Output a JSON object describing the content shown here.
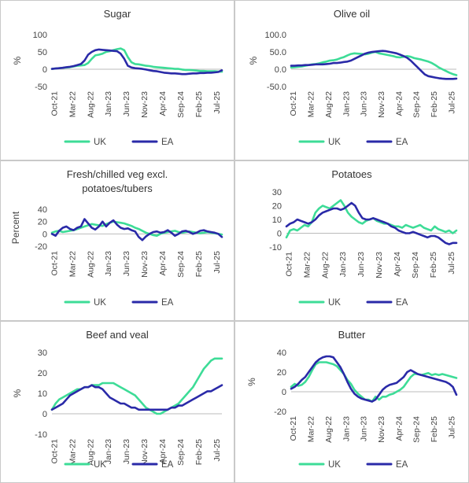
{
  "chart_data": [
    {
      "type": "line",
      "title": [
        "Sugar"
      ],
      "ylabel": "%",
      "yticks": [
        "100",
        "50",
        "0",
        "-50"
      ],
      "ylim": [
        -50,
        100
      ],
      "xticks": [
        "Oct-21",
        "Mar-22",
        "Aug-22",
        "Jan-23",
        "Jun-23",
        "Nov-23",
        "Apr-24",
        "Sep-24",
        "Feb-25",
        "Jul-25"
      ],
      "series": [
        {
          "name": "UK",
          "color": "#3ddc97",
          "values": [
            1,
            2,
            3,
            4,
            5,
            6,
            8,
            10,
            11,
            12,
            18,
            30,
            40,
            42,
            45,
            50,
            52,
            55,
            58,
            60,
            55,
            35,
            20,
            15,
            14,
            12,
            10,
            9,
            7,
            6,
            5,
            4,
            3,
            2,
            1,
            1,
            -1,
            -2,
            -2,
            -3,
            -4,
            -5,
            -5,
            -6,
            -6,
            -6,
            -7,
            -7
          ]
        },
        {
          "name": "EA",
          "color": "#2a2aa8",
          "values": [
            1,
            2,
            3,
            4,
            6,
            7,
            9,
            12,
            15,
            25,
            42,
            50,
            55,
            57,
            56,
            55,
            54,
            53,
            52,
            45,
            30,
            10,
            5,
            3,
            2,
            1,
            -1,
            -3,
            -5,
            -6,
            -8,
            -10,
            -11,
            -12,
            -12,
            -13,
            -14,
            -14,
            -13,
            -12,
            -12,
            -11,
            -11,
            -10,
            -10,
            -9,
            -8,
            -3
          ]
        }
      ]
    },
    {
      "type": "line",
      "title": [
        "Olive oil"
      ],
      "ylabel": "%",
      "yticks": [
        "100.0",
        "50.0",
        "0.0",
        "-50.0"
      ],
      "ylim": [
        -50,
        100
      ],
      "xticks": [
        "Oct-21",
        "Mar-22",
        "Aug-22",
        "Jan-23",
        "Jun-23",
        "Nov-23",
        "Apr-24",
        "Sep-24",
        "Feb-25",
        "Jul-25"
      ],
      "series": [
        {
          "name": "UK",
          "color": "#3ddc97",
          "values": [
            5,
            6,
            7,
            8,
            10,
            12,
            14,
            15,
            17,
            20,
            22,
            25,
            26,
            28,
            32,
            35,
            40,
            44,
            46,
            45,
            44,
            43,
            45,
            48,
            50,
            46,
            44,
            42,
            40,
            38,
            35,
            34,
            36,
            38,
            36,
            32,
            30,
            28,
            25,
            22,
            18,
            12,
            5,
            0,
            -5,
            -10,
            -14,
            -17
          ]
        },
        {
          "name": "EA",
          "color": "#2a2aa8",
          "values": [
            10,
            10,
            11,
            11,
            12,
            12,
            13,
            14,
            14,
            14,
            15,
            16,
            18,
            18,
            19,
            21,
            22,
            25,
            30,
            35,
            40,
            45,
            48,
            50,
            51,
            52,
            53,
            52,
            50,
            48,
            46,
            42,
            38,
            33,
            25,
            15,
            5,
            -5,
            -15,
            -20,
            -22,
            -24,
            -26,
            -27,
            -28,
            -28,
            -28,
            -27
          ]
        }
      ]
    },
    {
      "type": "line",
      "title": [
        "Fresh/chilled veg excl.",
        "potatoes/tubers"
      ],
      "ylabel": "Percent",
      "yticks": [
        "40",
        "20",
        "0",
        "-20"
      ],
      "ylim": [
        -20,
        40
      ],
      "xticks": [
        "Oct-21",
        "Mar-22",
        "Aug-22",
        "Jan-23",
        "Jun-23",
        "Nov-23",
        "Apr-24",
        "Sep-24",
        "Feb-25",
        "Jul-25"
      ],
      "series": [
        {
          "name": "UK",
          "color": "#3ddc97",
          "values": [
            2,
            4,
            5,
            3,
            4,
            5,
            6,
            8,
            10,
            12,
            14,
            16,
            15,
            14,
            13,
            16,
            18,
            20,
            19,
            18,
            17,
            15,
            13,
            10,
            8,
            5,
            2,
            0,
            -2,
            -3,
            0,
            2,
            3,
            4,
            5,
            3,
            2,
            3,
            4,
            3,
            2,
            1,
            2,
            3,
            2,
            1,
            0,
            -1
          ]
        },
        {
          "name": "EA",
          "color": "#2a2aa8",
          "values": [
            0,
            -3,
            5,
            10,
            12,
            8,
            6,
            10,
            12,
            24,
            17,
            10,
            7,
            12,
            20,
            12,
            18,
            22,
            15,
            10,
            8,
            9,
            6,
            4,
            -5,
            -10,
            -4,
            0,
            3,
            4,
            2,
            3,
            6,
            2,
            -3,
            0,
            4,
            5,
            3,
            0,
            2,
            5,
            6,
            4,
            3,
            2,
            0,
            -5
          ]
        }
      ]
    },
    {
      "type": "line",
      "title": [
        "Potatoes"
      ],
      "ylabel": "",
      "yticks": [
        "30",
        "20",
        "10",
        "0",
        "-10"
      ],
      "ylim": [
        -10,
        30
      ],
      "xticks": [
        "Oct-21",
        "Mar-22",
        "Aug-22",
        "Jan-23",
        "Jun-23",
        "Nov-23",
        "Apr-24",
        "Sep-24",
        "Feb-25",
        "Jul-25"
      ],
      "series": [
        {
          "name": "UK",
          "color": "#3ddc97",
          "values": [
            -3,
            2,
            3,
            2,
            4,
            6,
            5,
            8,
            15,
            18,
            20,
            19,
            18,
            20,
            22,
            24,
            20,
            15,
            12,
            10,
            8,
            7,
            9,
            10,
            11,
            9,
            8,
            7,
            7,
            6,
            5,
            5,
            4,
            6,
            5,
            4,
            5,
            6,
            4,
            3,
            2,
            5,
            3,
            2,
            1,
            2,
            0,
            2
          ]
        },
        {
          "name": "EA",
          "color": "#2a2aa8",
          "values": [
            5,
            7,
            8,
            10,
            9,
            8,
            7,
            8,
            10,
            13,
            15,
            16,
            17,
            18,
            18,
            17,
            18,
            20,
            22,
            20,
            15,
            11,
            10,
            10,
            11,
            10,
            9,
            8,
            7,
            5,
            4,
            2,
            1,
            0,
            0,
            1,
            0,
            -1,
            -2,
            -3,
            -2,
            -2,
            -3,
            -5,
            -7,
            -8,
            -7,
            -7
          ]
        }
      ]
    },
    {
      "type": "line",
      "title": [
        "Beef and veal"
      ],
      "ylabel": "%",
      "yticks": [
        "30",
        "20",
        "10",
        "0",
        "-10"
      ],
      "ylim": [
        -10,
        30
      ],
      "xticks": [
        "Oct-21",
        "Mar-22",
        "Aug-22",
        "Jan-23",
        "Jun-23",
        "Nov-23",
        "Apr-24",
        "Sep-24",
        "Feb-25",
        "Jul-25"
      ],
      "series": [
        {
          "name": "UK",
          "color": "#3ddc97",
          "values": [
            2,
            5,
            7,
            8,
            9,
            10,
            11,
            12,
            12,
            13,
            13,
            14,
            14,
            14,
            15,
            15,
            15,
            15,
            14,
            13,
            12,
            11,
            10,
            9,
            7,
            5,
            3,
            2,
            1,
            0,
            0,
            1,
            2,
            3,
            4,
            5,
            7,
            9,
            11,
            13,
            16,
            19,
            22,
            24,
            26,
            27,
            27,
            27
          ]
        },
        {
          "name": "EA",
          "color": "#2a2aa8",
          "values": [
            2,
            3,
            4,
            5,
            7,
            9,
            10,
            11,
            12,
            13,
            13,
            14,
            13,
            13,
            12,
            10,
            8,
            7,
            6,
            5,
            5,
            4,
            3,
            3,
            2,
            2,
            2,
            2,
            2,
            2,
            2,
            2,
            2,
            3,
            3,
            4,
            4,
            5,
            6,
            7,
            8,
            9,
            10,
            11,
            11,
            12,
            13,
            14
          ]
        }
      ]
    },
    {
      "type": "line",
      "title": [
        "Butter"
      ],
      "ylabel": "%",
      "yticks": [
        "40",
        "20",
        "0",
        "-20"
      ],
      "ylim": [
        -20,
        40
      ],
      "xticks": [
        "Oct-21",
        "Mar-22",
        "Aug-22",
        "Jan-23",
        "Jun-23",
        "Nov-23",
        "Apr-24",
        "Sep-24",
        "Feb-25",
        "Jul-25"
      ],
      "series": [
        {
          "name": "UK",
          "color": "#3ddc97",
          "values": [
            5,
            8,
            6,
            7,
            10,
            15,
            22,
            28,
            30,
            30,
            30,
            29,
            28,
            26,
            22,
            18,
            12,
            8,
            2,
            -2,
            -5,
            -8,
            -8,
            -10,
            -5,
            -8,
            -5,
            -5,
            -3,
            -2,
            0,
            2,
            5,
            10,
            15,
            18,
            18,
            17,
            18,
            19,
            17,
            18,
            17,
            18,
            17,
            16,
            15,
            14
          ]
        },
        {
          "name": "EA",
          "color": "#2a2aa8",
          "values": [
            3,
            5,
            8,
            12,
            15,
            20,
            25,
            30,
            33,
            35,
            36,
            36,
            35,
            30,
            25,
            18,
            10,
            3,
            -2,
            -5,
            -7,
            -8,
            -9,
            -10,
            -8,
            -3,
            2,
            5,
            7,
            8,
            9,
            12,
            15,
            20,
            22,
            20,
            18,
            17,
            16,
            15,
            14,
            13,
            12,
            11,
            10,
            8,
            5,
            -3
          ]
        }
      ]
    }
  ]
}
